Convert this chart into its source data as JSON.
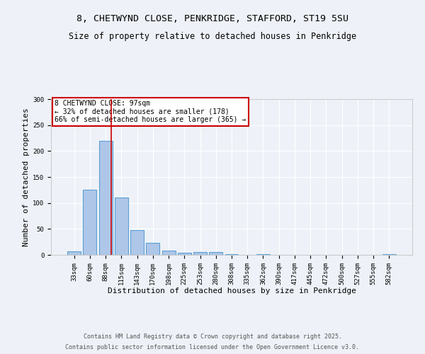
{
  "title_line1": "8, CHETWYND CLOSE, PENKRIDGE, STAFFORD, ST19 5SU",
  "title_line2": "Size of property relative to detached houses in Penkridge",
  "xlabel": "Distribution of detached houses by size in Penkridge",
  "ylabel": "Number of detached properties",
  "bin_labels": [
    "33sqm",
    "60sqm",
    "88sqm",
    "115sqm",
    "143sqm",
    "170sqm",
    "198sqm",
    "225sqm",
    "253sqm",
    "280sqm",
    "308sqm",
    "335sqm",
    "362sqm",
    "390sqm",
    "417sqm",
    "445sqm",
    "472sqm",
    "500sqm",
    "527sqm",
    "555sqm",
    "582sqm"
  ],
  "bar_values": [
    7,
    126,
    220,
    110,
    48,
    23,
    8,
    4,
    5,
    5,
    1,
    0,
    2,
    0,
    0,
    0,
    0,
    0,
    0,
    0,
    2
  ],
  "bar_color": "#aec6e8",
  "bar_edge_color": "#5a9fd4",
  "vline_x": 2.37,
  "vline_color": "#cc0000",
  "annotation_text": "8 CHETWYND CLOSE: 97sqm\n← 32% of detached houses are smaller (178)\n66% of semi-detached houses are larger (365) →",
  "annotation_box_color": "#cc0000",
  "annotation_bg_color": "#ffffff",
  "ylim": [
    0,
    300
  ],
  "yticks": [
    0,
    50,
    100,
    150,
    200,
    250,
    300
  ],
  "footer_line1": "Contains HM Land Registry data © Crown copyright and database right 2025.",
  "footer_line2": "Contains public sector information licensed under the Open Government Licence v3.0.",
  "bg_color": "#eef2f8",
  "title_fontsize": 9.5,
  "subtitle_fontsize": 8.5,
  "axis_label_fontsize": 8,
  "tick_fontsize": 6.5,
  "footer_fontsize": 6,
  "annotation_fontsize": 7
}
